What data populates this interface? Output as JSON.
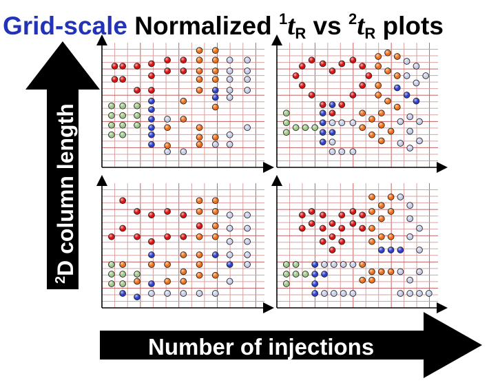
{
  "title": {
    "part1": "Grid-scale",
    "part2": "Normalized ",
    "t1_sup": "1",
    "t1_var": "t",
    "t1_sub": "R",
    "vs": " vs ",
    "t2_sup": "2",
    "t2_var": "t",
    "t2_sub": "R",
    "part3": " plots"
  },
  "vertical_arrow": {
    "sup": "2",
    "label": "D column length"
  },
  "horizontal_arrow": {
    "label": "Number of injections"
  },
  "colors": {
    "grid_line": "#d9a0a0",
    "grid_line_strong": "#c46060",
    "red": "#e01010",
    "orange": "#f07018",
    "green": "#9fc88a",
    "blue": "#2c3fd0",
    "lavender": "#c8cde8",
    "title_blue": "#2233b8"
  },
  "panels": [
    {
      "name": "top-left",
      "points": [
        [
          "r",
          0.08,
          0.84
        ],
        [
          "r",
          0.13,
          0.84
        ],
        [
          "r",
          0.08,
          0.73
        ],
        [
          "r",
          0.13,
          0.73
        ],
        [
          "r",
          0.22,
          0.84
        ],
        [
          "r",
          0.31,
          0.86
        ],
        [
          "r",
          0.31,
          0.76
        ],
        [
          "r",
          0.22,
          0.64
        ],
        [
          "r",
          0.31,
          0.64
        ],
        [
          "r",
          0.41,
          0.89
        ],
        [
          "r",
          0.41,
          0.8
        ],
        [
          "r",
          0.51,
          0.89
        ],
        [
          "r",
          0.51,
          0.8
        ],
        [
          "o",
          0.61,
          0.97
        ],
        [
          "o",
          0.61,
          0.89
        ],
        [
          "o",
          0.61,
          0.8
        ],
        [
          "o",
          0.61,
          0.73
        ],
        [
          "o",
          0.61,
          0.64
        ],
        [
          "o",
          0.71,
          0.97
        ],
        [
          "o",
          0.71,
          0.89
        ],
        [
          "o",
          0.71,
          0.8
        ],
        [
          "o",
          0.71,
          0.73
        ],
        [
          "o",
          0.51,
          0.55
        ],
        [
          "o",
          0.51,
          0.4
        ],
        [
          "o",
          0.41,
          0.33
        ],
        [
          "o",
          0.61,
          0.33
        ],
        [
          "o",
          0.61,
          0.25
        ],
        [
          "o",
          0.61,
          0.19
        ],
        [
          "o",
          0.71,
          0.5
        ],
        [
          "o",
          0.41,
          0.18
        ],
        [
          "o",
          0.71,
          0.25
        ],
        [
          "g",
          0.06,
          0.51
        ],
        [
          "g",
          0.06,
          0.43
        ],
        [
          "g",
          0.06,
          0.35
        ],
        [
          "g",
          0.06,
          0.27
        ],
        [
          "g",
          0.13,
          0.51
        ],
        [
          "g",
          0.13,
          0.43
        ],
        [
          "g",
          0.13,
          0.35
        ],
        [
          "g",
          0.13,
          0.27
        ],
        [
          "g",
          0.22,
          0.51
        ],
        [
          "g",
          0.22,
          0.43
        ],
        [
          "g",
          0.22,
          0.35
        ],
        [
          "b",
          0.31,
          0.55
        ],
        [
          "b",
          0.31,
          0.48
        ],
        [
          "b",
          0.31,
          0.4
        ],
        [
          "b",
          0.31,
          0.33
        ],
        [
          "b",
          0.31,
          0.27
        ],
        [
          "b",
          0.31,
          0.19
        ],
        [
          "b",
          0.71,
          0.64
        ],
        [
          "b",
          0.71,
          0.58
        ],
        [
          "l",
          0.8,
          0.89
        ],
        [
          "l",
          0.8,
          0.8
        ],
        [
          "l",
          0.8,
          0.73
        ],
        [
          "l",
          0.8,
          0.64
        ],
        [
          "l",
          0.8,
          0.58
        ],
        [
          "l",
          0.91,
          0.89
        ],
        [
          "l",
          0.91,
          0.8
        ],
        [
          "l",
          0.91,
          0.73
        ],
        [
          "l",
          0.91,
          0.64
        ],
        [
          "l",
          0.41,
          0.4
        ],
        [
          "l",
          0.41,
          0.13
        ],
        [
          "l",
          0.51,
          0.13
        ],
        [
          "l",
          0.8,
          0.27
        ],
        [
          "l",
          0.8,
          0.19
        ],
        [
          "l",
          0.91,
          0.33
        ],
        [
          "l",
          0.71,
          0.19
        ]
      ]
    },
    {
      "name": "top-right",
      "points": [
        [
          "r",
          0.16,
          0.84
        ],
        [
          "r",
          0.22,
          0.89
        ],
        [
          "r",
          0.29,
          0.86
        ],
        [
          "r",
          0.35,
          0.8
        ],
        [
          "r",
          0.41,
          0.86
        ],
        [
          "r",
          0.48,
          0.89
        ],
        [
          "r",
          0.54,
          0.84
        ],
        [
          "r",
          0.12,
          0.76
        ],
        [
          "r",
          0.58,
          0.76
        ],
        [
          "r",
          0.16,
          0.68
        ],
        [
          "r",
          0.54,
          0.68
        ],
        [
          "r",
          0.22,
          0.6
        ],
        [
          "r",
          0.48,
          0.6
        ],
        [
          "r",
          0.29,
          0.52
        ],
        [
          "r",
          0.41,
          0.52
        ],
        [
          "r",
          0.35,
          0.45
        ],
        [
          "o",
          0.64,
          0.92
        ],
        [
          "o",
          0.7,
          0.95
        ],
        [
          "o",
          0.76,
          0.92
        ],
        [
          "o",
          0.64,
          0.84
        ],
        [
          "o",
          0.7,
          0.8
        ],
        [
          "o",
          0.76,
          0.76
        ],
        [
          "o",
          0.64,
          0.68
        ],
        [
          "o",
          0.64,
          0.6
        ],
        [
          "o",
          0.7,
          0.55
        ],
        [
          "o",
          0.76,
          0.5
        ],
        [
          "o",
          0.54,
          0.45
        ],
        [
          "o",
          0.6,
          0.4
        ],
        [
          "o",
          0.54,
          0.33
        ],
        [
          "o",
          0.6,
          0.27
        ],
        [
          "o",
          0.66,
          0.22
        ],
        [
          "o",
          0.66,
          0.45
        ],
        [
          "o",
          0.66,
          0.35
        ],
        [
          "o",
          0.72,
          0.3
        ],
        [
          "g",
          0.06,
          0.45
        ],
        [
          "g",
          0.06,
          0.37
        ],
        [
          "g",
          0.06,
          0.29
        ],
        [
          "g",
          0.12,
          0.33
        ],
        [
          "g",
          0.18,
          0.33
        ],
        [
          "g",
          0.24,
          0.33
        ],
        [
          "b",
          0.29,
          0.45
        ],
        [
          "b",
          0.29,
          0.37
        ],
        [
          "b",
          0.29,
          0.29
        ],
        [
          "b",
          0.29,
          0.21
        ],
        [
          "b",
          0.35,
          0.52
        ],
        [
          "b",
          0.35,
          0.29
        ],
        [
          "b",
          0.76,
          0.66
        ],
        [
          "b",
          0.82,
          0.6
        ],
        [
          "b",
          0.88,
          0.55
        ],
        [
          "l",
          0.35,
          0.37
        ],
        [
          "l",
          0.35,
          0.21
        ],
        [
          "l",
          0.35,
          0.13
        ],
        [
          "l",
          0.41,
          0.37
        ],
        [
          "l",
          0.41,
          0.13
        ],
        [
          "l",
          0.48,
          0.37
        ],
        [
          "l",
          0.48,
          0.13
        ],
        [
          "l",
          0.82,
          0.88
        ],
        [
          "l",
          0.88,
          0.84
        ],
        [
          "l",
          0.82,
          0.76
        ],
        [
          "l",
          0.88,
          0.7
        ],
        [
          "l",
          0.94,
          0.76
        ],
        [
          "l",
          0.78,
          0.38
        ],
        [
          "l",
          0.84,
          0.42
        ],
        [
          "l",
          0.9,
          0.38
        ],
        [
          "l",
          0.84,
          0.3
        ],
        [
          "l",
          0.9,
          0.22
        ],
        [
          "l",
          0.78,
          0.2
        ],
        [
          "l",
          0.84,
          0.16
        ]
      ]
    },
    {
      "name": "bottom-left",
      "points": [
        [
          "r",
          0.13,
          0.89
        ],
        [
          "r",
          0.06,
          0.59
        ],
        [
          "r",
          0.13,
          0.66
        ],
        [
          "r",
          0.22,
          0.8
        ],
        [
          "r",
          0.22,
          0.59
        ],
        [
          "r",
          0.31,
          0.77
        ],
        [
          "r",
          0.41,
          0.8
        ],
        [
          "r",
          0.41,
          0.59
        ],
        [
          "r",
          0.31,
          0.55
        ],
        [
          "r",
          0.51,
          0.77
        ],
        [
          "r",
          0.51,
          0.59
        ],
        [
          "r",
          0.61,
          0.68
        ],
        [
          "o",
          0.61,
          0.89
        ],
        [
          "o",
          0.61,
          0.8
        ],
        [
          "o",
          0.71,
          0.89
        ],
        [
          "o",
          0.71,
          0.8
        ],
        [
          "o",
          0.71,
          0.68
        ],
        [
          "o",
          0.61,
          0.59
        ],
        [
          "o",
          0.71,
          0.59
        ],
        [
          "o",
          0.51,
          0.44
        ],
        [
          "o",
          0.61,
          0.44
        ],
        [
          "o",
          0.41,
          0.36
        ],
        [
          "o",
          0.61,
          0.36
        ],
        [
          "o",
          0.51,
          0.22
        ],
        [
          "o",
          0.61,
          0.27
        ],
        [
          "o",
          0.71,
          0.27
        ],
        [
          "o",
          0.51,
          0.3
        ],
        [
          "o",
          0.41,
          0.22
        ],
        [
          "o",
          0.22,
          0.22
        ],
        [
          "o",
          0.13,
          0.36
        ],
        [
          "o",
          0.31,
          0.36
        ],
        [
          "g",
          0.06,
          0.36
        ],
        [
          "g",
          0.06,
          0.28
        ],
        [
          "g",
          0.06,
          0.2
        ],
        [
          "g",
          0.13,
          0.28
        ],
        [
          "g",
          0.13,
          0.2
        ],
        [
          "g",
          0.22,
          0.28
        ],
        [
          "b",
          0.31,
          0.44
        ],
        [
          "b",
          0.13,
          0.12
        ],
        [
          "b",
          0.22,
          0.09
        ],
        [
          "b",
          0.31,
          0.2
        ],
        [
          "b",
          0.71,
          0.44
        ],
        [
          "b",
          0.8,
          0.36
        ],
        [
          "l",
          0.8,
          0.77
        ],
        [
          "l",
          0.8,
          0.66
        ],
        [
          "l",
          0.8,
          0.55
        ],
        [
          "l",
          0.8,
          0.44
        ],
        [
          "l",
          0.91,
          0.77
        ],
        [
          "l",
          0.91,
          0.66
        ],
        [
          "l",
          0.91,
          0.55
        ],
        [
          "l",
          0.91,
          0.44
        ],
        [
          "l",
          0.91,
          0.36
        ],
        [
          "l",
          0.41,
          0.12
        ],
        [
          "l",
          0.51,
          0.12
        ],
        [
          "l",
          0.61,
          0.12
        ],
        [
          "l",
          0.71,
          0.12
        ],
        [
          "l",
          0.8,
          0.22
        ],
        [
          "l",
          0.31,
          0.12
        ]
      ]
    },
    {
      "name": "bottom-right",
      "points": [
        [
          "r",
          0.16,
          0.77
        ],
        [
          "r",
          0.22,
          0.8
        ],
        [
          "r",
          0.29,
          0.77
        ],
        [
          "r",
          0.35,
          0.7
        ],
        [
          "r",
          0.41,
          0.77
        ],
        [
          "r",
          0.48,
          0.8
        ],
        [
          "r",
          0.54,
          0.77
        ],
        [
          "r",
          0.16,
          0.66
        ],
        [
          "r",
          0.22,
          0.7
        ],
        [
          "r",
          0.29,
          0.66
        ],
        [
          "r",
          0.35,
          0.59
        ],
        [
          "r",
          0.41,
          0.66
        ],
        [
          "r",
          0.48,
          0.7
        ],
        [
          "r",
          0.54,
          0.66
        ],
        [
          "r",
          0.29,
          0.55
        ],
        [
          "r",
          0.35,
          0.48
        ],
        [
          "r",
          0.41,
          0.55
        ],
        [
          "o",
          0.6,
          0.92
        ],
        [
          "o",
          0.66,
          0.85
        ],
        [
          "o",
          0.72,
          0.92
        ],
        [
          "o",
          0.6,
          0.8
        ],
        [
          "o",
          0.66,
          0.74
        ],
        [
          "o",
          0.72,
          0.8
        ],
        [
          "o",
          0.6,
          0.66
        ],
        [
          "o",
          0.66,
          0.59
        ],
        [
          "o",
          0.6,
          0.55
        ],
        [
          "o",
          0.72,
          0.59
        ],
        [
          "o",
          0.54,
          0.36
        ],
        [
          "o",
          0.6,
          0.3
        ],
        [
          "o",
          0.66,
          0.3
        ],
        [
          "o",
          0.72,
          0.3
        ],
        [
          "o",
          0.6,
          0.23
        ],
        [
          "o",
          0.54,
          0.23
        ],
        [
          "g",
          0.06,
          0.36
        ],
        [
          "g",
          0.06,
          0.28
        ],
        [
          "g",
          0.12,
          0.28
        ],
        [
          "g",
          0.18,
          0.28
        ],
        [
          "g",
          0.12,
          0.36
        ],
        [
          "g",
          0.06,
          0.2
        ],
        [
          "b",
          0.24,
          0.36
        ],
        [
          "b",
          0.24,
          0.28
        ],
        [
          "b",
          0.24,
          0.2
        ],
        [
          "b",
          0.24,
          0.12
        ],
        [
          "b",
          0.3,
          0.28
        ],
        [
          "b",
          0.66,
          0.48
        ],
        [
          "b",
          0.72,
          0.48
        ],
        [
          "b",
          0.78,
          0.48
        ],
        [
          "l",
          0.3,
          0.36
        ],
        [
          "l",
          0.36,
          0.36
        ],
        [
          "l",
          0.42,
          0.36
        ],
        [
          "l",
          0.48,
          0.36
        ],
        [
          "l",
          0.3,
          0.12
        ],
        [
          "l",
          0.36,
          0.12
        ],
        [
          "l",
          0.42,
          0.12
        ],
        [
          "l",
          0.48,
          0.12
        ],
        [
          "l",
          0.78,
          0.92
        ],
        [
          "l",
          0.84,
          0.85
        ],
        [
          "l",
          0.84,
          0.74
        ],
        [
          "l",
          0.9,
          0.66
        ],
        [
          "l",
          0.84,
          0.59
        ],
        [
          "l",
          0.9,
          0.48
        ],
        [
          "l",
          0.78,
          0.3
        ],
        [
          "l",
          0.84,
          0.23
        ],
        [
          "l",
          0.9,
          0.3
        ],
        [
          "l",
          0.78,
          0.12
        ],
        [
          "l",
          0.84,
          0.12
        ],
        [
          "l",
          0.9,
          0.12
        ],
        [
          "l",
          0.96,
          0.12
        ]
      ]
    }
  ]
}
